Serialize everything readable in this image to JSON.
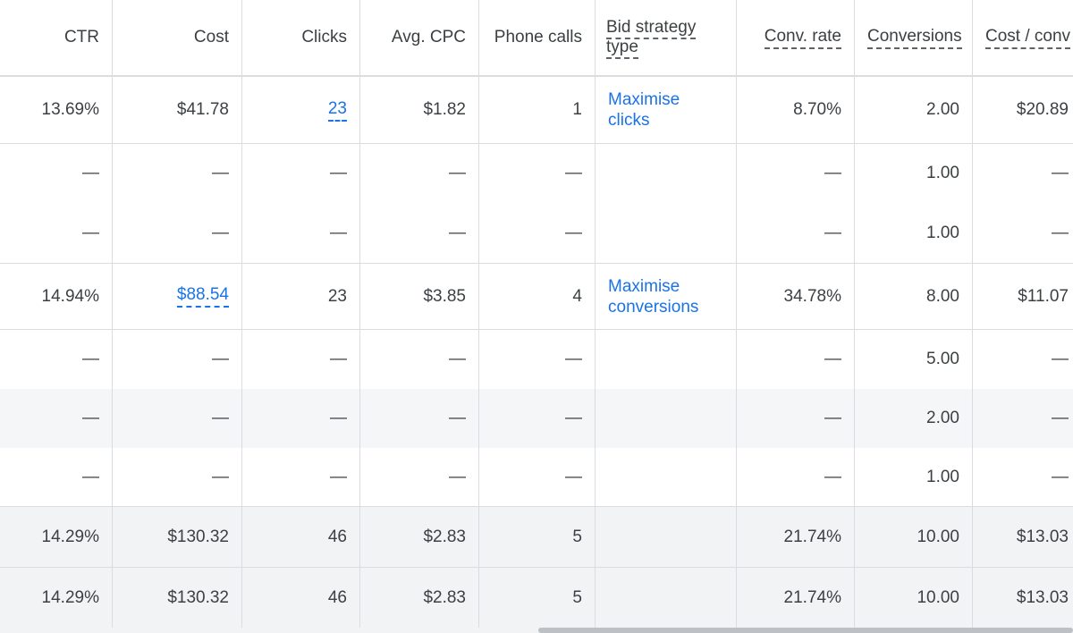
{
  "headers": {
    "ctr": "CTR",
    "cost": "Cost",
    "clicks": "Clicks",
    "avg_cpc": "Avg. CPC",
    "phone_calls": "Phone calls",
    "bid_strategy_type_line1": "Bid strategy",
    "bid_strategy_type_line2": "type",
    "conv_rate": "Conv. rate",
    "conversions": "Conversions",
    "cost_per_conv": "Cost / conv"
  },
  "rows": [
    {
      "ctr": "13.69%",
      "cost": "$41.78",
      "clicks": "23",
      "avg_cpc": "$1.82",
      "phone_calls": "1",
      "bid_strategy": "Maximise clicks",
      "conv_rate": "8.70%",
      "conversions": "2.00",
      "cost_per_conv": "$20.89"
    },
    {
      "ctr": "—",
      "cost": "—",
      "clicks": "—",
      "avg_cpc": "—",
      "phone_calls": "—",
      "bid_strategy": "",
      "conv_rate": "—",
      "conversions": "1.00",
      "cost_per_conv": "—"
    },
    {
      "ctr": "—",
      "cost": "—",
      "clicks": "—",
      "avg_cpc": "—",
      "phone_calls": "—",
      "bid_strategy": "",
      "conv_rate": "—",
      "conversions": "1.00",
      "cost_per_conv": "—"
    },
    {
      "ctr": "14.94%",
      "cost": "$88.54",
      "clicks": "23",
      "avg_cpc": "$3.85",
      "phone_calls": "4",
      "bid_strategy": "Maximise conversions",
      "conv_rate": "34.78%",
      "conversions": "8.00",
      "cost_per_conv": "$11.07"
    },
    {
      "ctr": "—",
      "cost": "—",
      "clicks": "—",
      "avg_cpc": "—",
      "phone_calls": "—",
      "bid_strategy": "",
      "conv_rate": "—",
      "conversions": "5.00",
      "cost_per_conv": "—"
    },
    {
      "ctr": "—",
      "cost": "—",
      "clicks": "—",
      "avg_cpc": "—",
      "phone_calls": "—",
      "bid_strategy": "",
      "conv_rate": "—",
      "conversions": "2.00",
      "cost_per_conv": "—"
    },
    {
      "ctr": "—",
      "cost": "—",
      "clicks": "—",
      "avg_cpc": "—",
      "phone_calls": "—",
      "bid_strategy": "",
      "conv_rate": "—",
      "conversions": "1.00",
      "cost_per_conv": "—"
    }
  ],
  "totals": [
    {
      "ctr": "14.29%",
      "cost": "$130.32",
      "clicks": "46",
      "avg_cpc": "$2.83",
      "phone_calls": "5",
      "bid_strategy": "",
      "conv_rate": "21.74%",
      "conversions": "10.00",
      "cost_per_conv": "$13.03"
    },
    {
      "ctr": "14.29%",
      "cost": "$130.32",
      "clicks": "46",
      "avg_cpc": "$2.83",
      "phone_calls": "5",
      "bid_strategy": "",
      "conv_rate": "21.74%",
      "conversions": "10.00",
      "cost_per_conv": "$13.03"
    }
  ],
  "colors": {
    "link": "#1a73e8",
    "text": "#3c4043",
    "border": "#dadce0",
    "hover_row": "#f5f6f7",
    "total_row": "#f1f3f4"
  }
}
